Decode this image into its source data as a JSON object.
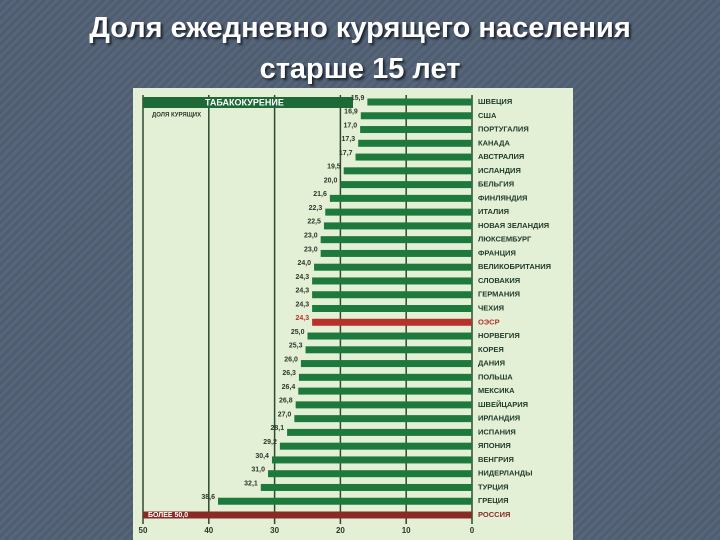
{
  "chart_data": {
    "type": "bar",
    "orientation": "horizontal",
    "title": "Доля ежедневно курящего населения старше 15 лет",
    "header": "ТАБАКОКУРЕНИЕ",
    "subheader": "ДОЛЯ КУРЯЩИХ",
    "categories": [
      "ШВЕЦИЯ",
      "США",
      "ПОРТУГАЛИЯ",
      "КАНАДА",
      "АВСТРАЛИЯ",
      "ИСЛАНДИЯ",
      "БЕЛЬГИЯ",
      "ФИНЛЯНДИЯ",
      "ИТАЛИЯ",
      "НОВАЯ ЗЕЛАНДИЯ",
      "ЛЮКСЕМБУРГ",
      "ФРАНЦИЯ",
      "ВЕЛИКОБРИТАНИЯ",
      "СЛОВАКИЯ",
      "ГЕРМАНИЯ",
      "ЧЕХИЯ",
      "ОЭСР",
      "НОРВЕГИЯ",
      "КОРЕЯ",
      "ДАНИЯ",
      "ПОЛЬША",
      "МЕКСИКА",
      "ШВЕЙЦАРИЯ",
      "ИРЛАНДИЯ",
      "ИСПАНИЯ",
      "ЯПОНИЯ",
      "ВЕНГРИЯ",
      "НИДЕРЛАНДЫ",
      "ТУРЦИЯ",
      "ГРЕЦИЯ",
      "РОССИЯ"
    ],
    "values": [
      15.9,
      16.9,
      17.0,
      17.3,
      17.7,
      19.5,
      20.0,
      21.6,
      22.3,
      22.5,
      23.0,
      23.0,
      24.0,
      24.3,
      24.3,
      24.3,
      24.3,
      25.0,
      25.3,
      26.0,
      26.3,
      26.4,
      26.8,
      27.0,
      28.1,
      29.2,
      30.4,
      31.0,
      32.1,
      38.6,
      50.0
    ],
    "value_labels": [
      "15,9",
      "16,9",
      "17,0",
      "17,3",
      "17,7",
      "19,5",
      "20,0",
      "21,6",
      "22,3",
      "22,5",
      "23,0",
      "23,0",
      "24,0",
      "24,3",
      "24,3",
      "24,3",
      "24,3",
      "25,0",
      "25,3",
      "26,0",
      "26,3",
      "26,4",
      "26,8",
      "27,0",
      "28,1",
      "29,2",
      "30,4",
      "31,0",
      "32,1",
      "38,6",
      "БОЛЕЕ 50,0"
    ],
    "bar_colors": [
      "#1e7a3c",
      "#1e7a3c",
      "#1e7a3c",
      "#1e7a3c",
      "#1e7a3c",
      "#1e7a3c",
      "#1e7a3c",
      "#1e7a3c",
      "#1e7a3c",
      "#1e7a3c",
      "#1e7a3c",
      "#1e7a3c",
      "#1e7a3c",
      "#1e7a3c",
      "#1e7a3c",
      "#1e7a3c",
      "#b8322c",
      "#1e7a3c",
      "#1e7a3c",
      "#1e7a3c",
      "#1e7a3c",
      "#1e7a3c",
      "#1e7a3c",
      "#1e7a3c",
      "#1e7a3c",
      "#1e7a3c",
      "#1e7a3c",
      "#1e7a3c",
      "#1e7a3c",
      "#1e7a3c",
      "#8a2a24"
    ],
    "xlim": [
      0,
      50
    ],
    "xticks": [
      50,
      40,
      30,
      20,
      10,
      0
    ],
    "x_reversed": true,
    "grid": true
  }
}
